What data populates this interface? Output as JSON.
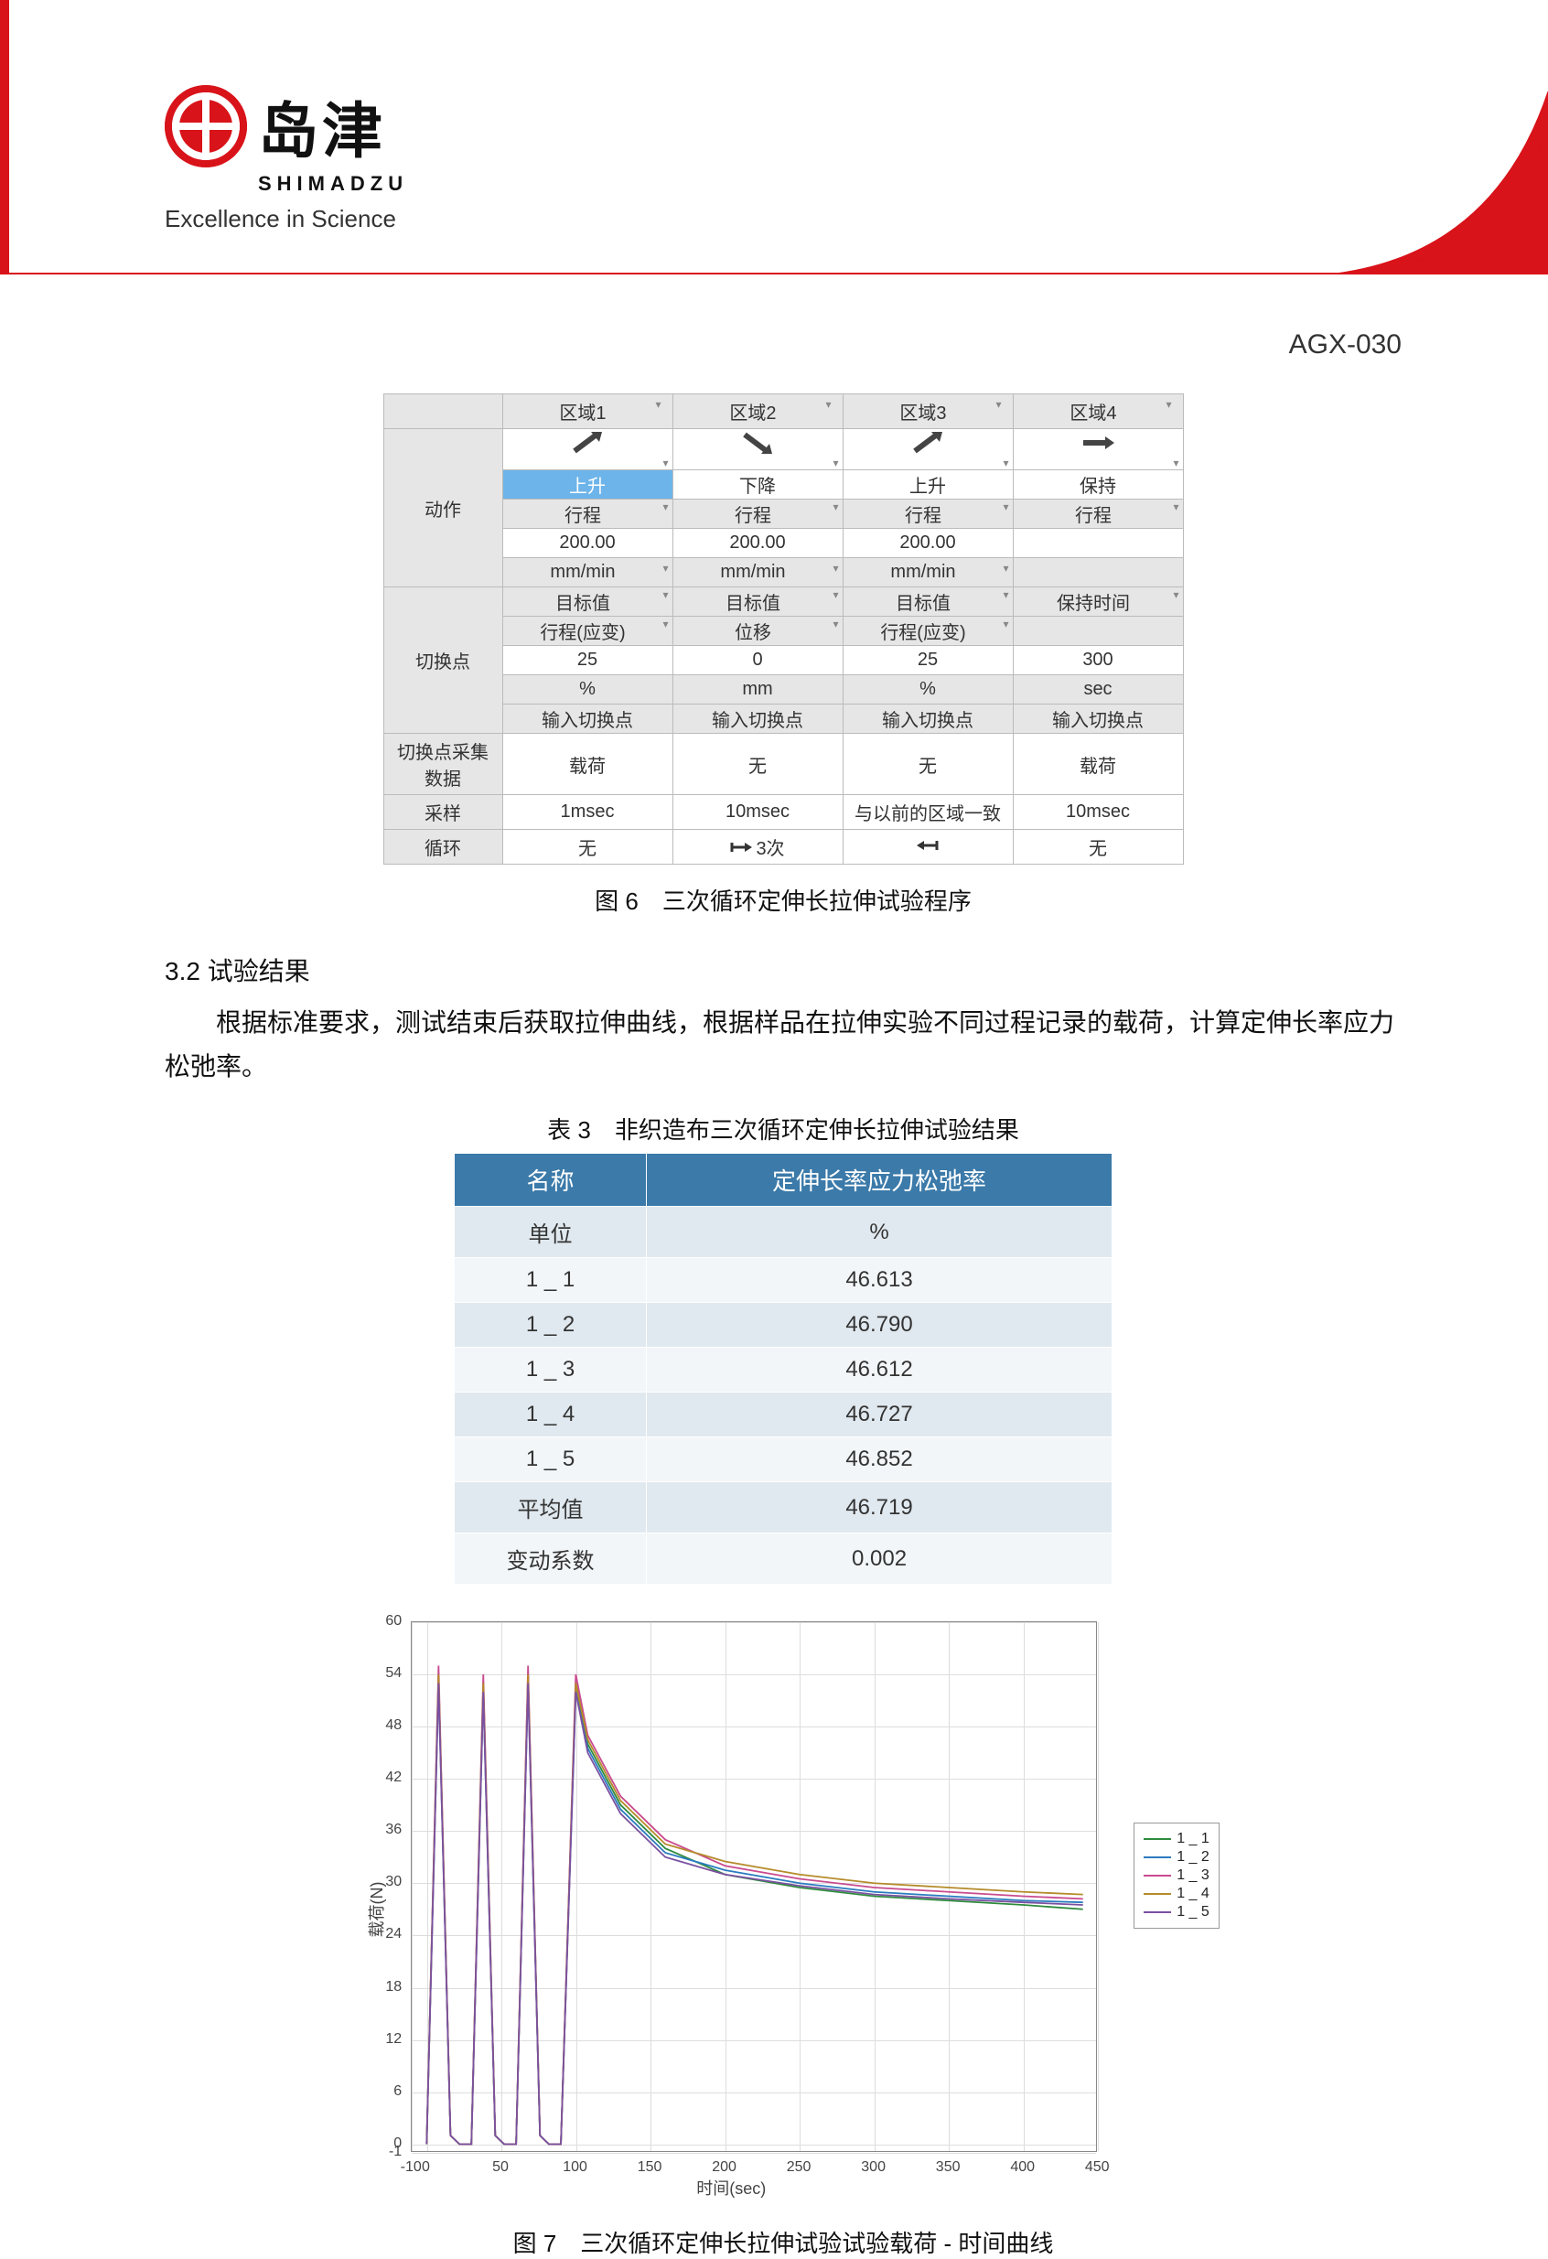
{
  "header": {
    "brand_cn": "岛津",
    "brand_en": "SHIMADZU",
    "tagline": "Excellence in Science",
    "doc_id": "AGX-030"
  },
  "prog_table": {
    "zone_headers": [
      "区域1",
      "区域2",
      "区域3",
      "区域4"
    ],
    "row_action_label": "动作",
    "actions": [
      "上升",
      "下降",
      "上升",
      "保持"
    ],
    "stroke_label": "行程",
    "speeds": [
      "200.00",
      "200.00",
      "200.00",
      ""
    ],
    "speed_unit": "mm/min",
    "row_switch_label": "切换点",
    "target_label": "目标值",
    "hold_label": "保持时间",
    "switch_types": [
      "行程(应变)",
      "位移",
      "行程(应变)",
      ""
    ],
    "switch_values": [
      "25",
      "0",
      "25",
      "300"
    ],
    "switch_units": [
      "%",
      "mm",
      "%",
      "sec"
    ],
    "input_switch": "输入切换点",
    "row_collect_label": "切换点采集数据",
    "collect_vals": [
      "载荷",
      "无",
      "无",
      "载荷"
    ],
    "row_sample_label": "采样",
    "sample_vals": [
      "1msec",
      "10msec",
      "与以前的区域一致",
      "10msec"
    ],
    "row_cycle_label": "循环",
    "cycle_vals": [
      "无",
      "3次",
      "",
      "无"
    ],
    "caption": "图 6　三次循环定伸长拉伸试验程序"
  },
  "section": {
    "h": "3.2 试验结果",
    "body": "根据标准要求，测试结束后获取拉伸曲线，根据样品在拉伸实验不同过程记录的载荷，计算定伸长率应力松弛率。"
  },
  "res_table": {
    "caption": "表 3　非织造布三次循环定伸长拉伸试验结果",
    "headers": [
      "名称",
      "定伸长率应力松弛率"
    ],
    "unit_row": [
      "单位",
      "%"
    ],
    "rows": [
      [
        "1 _ 1",
        "46.613"
      ],
      [
        "1 _ 2",
        "46.790"
      ],
      [
        "1 _ 3",
        "46.612"
      ],
      [
        "1 _ 4",
        "46.727"
      ],
      [
        "1 _ 5",
        "46.852"
      ]
    ],
    "avg": [
      "平均值",
      "46.719"
    ],
    "cv": [
      "变动系数",
      "0.002"
    ]
  },
  "chart": {
    "xlabel": "时间(sec)",
    "ylabel": "载荷(N)",
    "xlim": [
      -10,
      450
    ],
    "ylim": [
      -1,
      60
    ],
    "xticks": [
      -10,
      0,
      50,
      100,
      150,
      200,
      250,
      300,
      350,
      400,
      450
    ],
    "yticks": [
      -1,
      0,
      6,
      12,
      18,
      24,
      30,
      36,
      42,
      48,
      54,
      60
    ],
    "legend": [
      "1 _ 1",
      "1 _ 2",
      "1 _ 3",
      "1 _ 4",
      "1 _ 5"
    ],
    "colors": [
      "#2e8b3d",
      "#2a7bbf",
      "#c94b8f",
      "#b58b2a",
      "#7a50a0"
    ],
    "series": [
      {
        "label": "1 _ 1",
        "color": "#2e8b3d",
        "points": [
          [
            0,
            0
          ],
          [
            8,
            54
          ],
          [
            16,
            1
          ],
          [
            22,
            0
          ],
          [
            30,
            0
          ],
          [
            38,
            53
          ],
          [
            46,
            1
          ],
          [
            52,
            0
          ],
          [
            60,
            0
          ],
          [
            68,
            54
          ],
          [
            76,
            1
          ],
          [
            82,
            0
          ],
          [
            90,
            0
          ],
          [
            100,
            53
          ],
          [
            108,
            46
          ],
          [
            130,
            39
          ],
          [
            160,
            34
          ],
          [
            200,
            31
          ],
          [
            250,
            29.5
          ],
          [
            300,
            28.5
          ],
          [
            350,
            28
          ],
          [
            400,
            27.5
          ],
          [
            440,
            27
          ]
        ]
      },
      {
        "label": "1 _ 2",
        "color": "#2a7bbf",
        "points": [
          [
            0,
            0
          ],
          [
            8,
            53
          ],
          [
            16,
            1
          ],
          [
            22,
            0
          ],
          [
            30,
            0
          ],
          [
            38,
            52
          ],
          [
            46,
            1
          ],
          [
            52,
            0
          ],
          [
            60,
            0
          ],
          [
            68,
            53
          ],
          [
            76,
            1
          ],
          [
            82,
            0
          ],
          [
            90,
            0
          ],
          [
            100,
            52
          ],
          [
            108,
            45.5
          ],
          [
            130,
            38.5
          ],
          [
            160,
            33.5
          ],
          [
            200,
            31.5
          ],
          [
            250,
            30
          ],
          [
            300,
            29
          ],
          [
            350,
            28.5
          ],
          [
            400,
            28
          ],
          [
            440,
            27.8
          ]
        ]
      },
      {
        "label": "1 _ 3",
        "color": "#c94b8f",
        "points": [
          [
            0,
            0
          ],
          [
            8,
            55
          ],
          [
            16,
            1
          ],
          [
            22,
            0
          ],
          [
            30,
            0
          ],
          [
            38,
            54
          ],
          [
            46,
            1
          ],
          [
            52,
            0
          ],
          [
            60,
            0
          ],
          [
            68,
            55
          ],
          [
            76,
            1
          ],
          [
            82,
            0
          ],
          [
            90,
            0
          ],
          [
            100,
            54
          ],
          [
            108,
            47
          ],
          [
            130,
            40
          ],
          [
            160,
            35
          ],
          [
            200,
            32
          ],
          [
            250,
            30.5
          ],
          [
            300,
            29.5
          ],
          [
            350,
            29
          ],
          [
            400,
            28.5
          ],
          [
            440,
            28.2
          ]
        ]
      },
      {
        "label": "1 _ 4",
        "color": "#b58b2a",
        "points": [
          [
            0,
            0
          ],
          [
            8,
            54
          ],
          [
            16,
            1
          ],
          [
            22,
            0
          ],
          [
            30,
            0
          ],
          [
            38,
            53
          ],
          [
            46,
            1
          ],
          [
            52,
            0
          ],
          [
            60,
            0
          ],
          [
            68,
            54
          ],
          [
            76,
            1
          ],
          [
            82,
            0
          ],
          [
            90,
            0
          ],
          [
            100,
            53
          ],
          [
            108,
            46.5
          ],
          [
            130,
            39.5
          ],
          [
            160,
            34.5
          ],
          [
            200,
            32.5
          ],
          [
            250,
            31
          ],
          [
            300,
            30
          ],
          [
            350,
            29.5
          ],
          [
            400,
            29
          ],
          [
            440,
            28.7
          ]
        ]
      },
      {
        "label": "1 _ 5",
        "color": "#7a50a0",
        "points": [
          [
            0,
            0
          ],
          [
            8,
            53
          ],
          [
            16,
            1
          ],
          [
            22,
            0
          ],
          [
            30,
            0
          ],
          [
            38,
            52
          ],
          [
            46,
            1
          ],
          [
            52,
            0
          ],
          [
            60,
            0
          ],
          [
            68,
            53
          ],
          [
            76,
            1
          ],
          [
            82,
            0
          ],
          [
            90,
            0
          ],
          [
            100,
            52
          ],
          [
            108,
            45
          ],
          [
            130,
            38
          ],
          [
            160,
            33
          ],
          [
            200,
            31
          ],
          [
            250,
            29.7
          ],
          [
            300,
            28.7
          ],
          [
            350,
            28.2
          ],
          [
            400,
            27.8
          ],
          [
            440,
            27.5
          ]
        ]
      }
    ],
    "caption": "图 7　三次循环定伸长拉伸试验试验载荷 - 时间曲线"
  }
}
